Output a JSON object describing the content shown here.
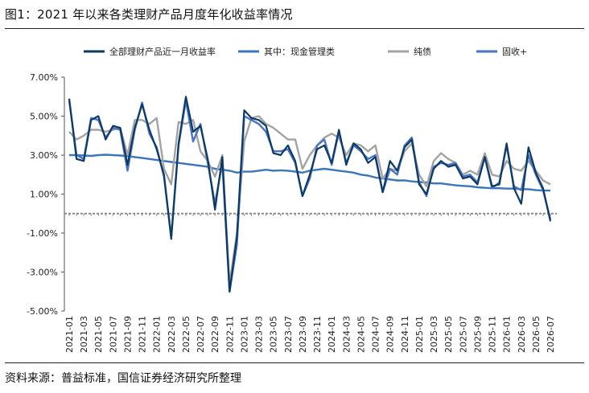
{
  "page": {
    "title": "图1：2021 年以来各类理财产品月度年化收益率情况",
    "source": "资料来源：普益标准，国信证券经济研究所整理"
  },
  "chart_data": {
    "type": "line",
    "title": "图1：2021 年以来各类理财产品月度年化收益率情况",
    "xlabel": "",
    "ylabel": "",
    "ylim": [
      -5,
      7
    ],
    "y_ticks": [
      7,
      5,
      3,
      1,
      -1,
      -3,
      -5
    ],
    "y_tick_labels": [
      "7.00%",
      "5.00%",
      "3.00%",
      "1.00%",
      "-1.00%",
      "-3.00%",
      "-5.00%"
    ],
    "grid": false,
    "legend_position": "top",
    "x": [
      "2021-01",
      "2021-02",
      "2021-03",
      "2021-04",
      "2021-05",
      "2021-06",
      "2021-07",
      "2021-08",
      "2021-09",
      "2021-10",
      "2021-11",
      "2021-12",
      "2022-01",
      "2022-02",
      "2022-03",
      "2022-04",
      "2022-05",
      "2022-06",
      "2022-07",
      "2022-08",
      "2022-09",
      "2022-10",
      "2022-11",
      "2022-12",
      "2023-01",
      "2023-02",
      "2023-03",
      "2023-04",
      "2023-05",
      "2023-06",
      "2023-07",
      "2023-08",
      "2023-09",
      "2023-10",
      "2023-11",
      "2023-12",
      "2024-01",
      "2024-02",
      "2024-03",
      "2024-04",
      "2024-05",
      "2024-06",
      "2024-07",
      "2024-08",
      "2024-09",
      "2024-10",
      "2024-11",
      "2024-12",
      "2025-01",
      "2025-02",
      "2025-03",
      "2025-04",
      "2025-05",
      "2025-06",
      "2025-07",
      "2025-08",
      "2025-09",
      "2025-10",
      "2025-11",
      "2025-12",
      "2026-01",
      "2026-02",
      "2026-03",
      "2026-04",
      "2026-05",
      "2026-06",
      "2026-07"
    ],
    "x_tick_labels": [
      "2021-01",
      "2021-03",
      "2021-05",
      "2021-07",
      "2021-09",
      "2021-11",
      "2022-01",
      "2022-03",
      "2022-05",
      "2022-07",
      "2022-09",
      "2022-11",
      "2023-01",
      "2023-03",
      "2023-05",
      "2023-07",
      "2023-09",
      "2023-11",
      "2024-01",
      "2024-03",
      "2024-05",
      "2024-07",
      "2024-09",
      "2024-11",
      "2025-01",
      "2025-03",
      "2025-05",
      "2025-07",
      "2025-09",
      "2025-11",
      "2026-01",
      "2026-03",
      "2026-05",
      "2026-07"
    ],
    "series": [
      {
        "name": "全部理财产品近一月收益率",
        "color": "#0d3a63",
        "values": [
          5.9,
          2.8,
          2.7,
          4.8,
          5.0,
          3.8,
          4.5,
          4.4,
          2.5,
          4.4,
          5.6,
          4.3,
          3.3,
          2.0,
          -1.3,
          3.6,
          6.0,
          4.2,
          4.5,
          2.8,
          0.2,
          2.9,
          -4.0,
          -1.2,
          5.3,
          4.9,
          4.8,
          4.5,
          3.1,
          3.0,
          3.5,
          2.7,
          0.9,
          2.0,
          3.3,
          3.5,
          2.6,
          4.3,
          2.5,
          3.6,
          3.3,
          2.6,
          2.9,
          1.1,
          2.7,
          2.2,
          3.4,
          3.8,
          1.5,
          1.0,
          2.3,
          2.7,
          2.4,
          2.5,
          1.8,
          1.9,
          1.5,
          2.9,
          1.4,
          1.5,
          3.6,
          1.3,
          0.5,
          3.4,
          2.1,
          1.3,
          -0.4
        ]
      },
      {
        "name": "其中：现金管理类",
        "color": "#3a76b8",
        "values": [
          3.0,
          3.0,
          2.98,
          2.96,
          3.0,
          3.02,
          3.0,
          2.98,
          2.95,
          2.9,
          2.85,
          2.8,
          2.75,
          2.7,
          2.65,
          2.6,
          2.55,
          2.5,
          2.45,
          2.4,
          2.3,
          2.25,
          2.2,
          2.1,
          2.15,
          2.15,
          2.2,
          2.25,
          2.2,
          2.22,
          2.2,
          2.15,
          2.1,
          2.2,
          2.25,
          2.3,
          2.25,
          2.2,
          2.15,
          2.1,
          2.0,
          1.95,
          1.85,
          1.8,
          1.75,
          1.7,
          1.7,
          1.65,
          1.62,
          1.6,
          1.55,
          1.55,
          1.5,
          1.45,
          1.42,
          1.4,
          1.35,
          1.32,
          1.3,
          1.3,
          1.28,
          1.28,
          1.25,
          1.25,
          1.2,
          1.18,
          1.18
        ]
      },
      {
        "name": "纯债",
        "color": "#a3a3a3",
        "values": [
          4.2,
          3.8,
          4.0,
          4.3,
          4.3,
          4.2,
          4.3,
          4.4,
          3.0,
          4.8,
          4.8,
          4.6,
          4.9,
          2.3,
          1.5,
          4.7,
          4.6,
          4.8,
          3.2,
          2.7,
          1.9,
          3.0,
          -3.6,
          -1.0,
          3.7,
          4.9,
          5.0,
          4.6,
          4.4,
          4.1,
          3.8,
          3.8,
          2.3,
          3.0,
          3.5,
          3.9,
          4.1,
          3.9,
          3.0,
          3.6,
          3.5,
          3.2,
          3.5,
          1.8,
          2.3,
          2.2,
          3.2,
          3.6,
          2.0,
          1.4,
          2.7,
          3.1,
          2.8,
          2.6,
          2.0,
          2.2,
          2.0,
          3.1,
          2.0,
          1.9,
          2.7,
          2.3,
          2.2,
          2.7,
          2.2,
          1.7,
          1.5
        ]
      },
      {
        "name": "固收+",
        "color": "#4a73c6",
        "values": [
          5.8,
          3.0,
          2.8,
          4.9,
          4.8,
          3.9,
          4.4,
          4.3,
          2.2,
          4.3,
          5.7,
          4.1,
          3.4,
          1.9,
          -1.2,
          3.5,
          5.8,
          3.7,
          4.6,
          2.6,
          0.5,
          2.6,
          -4.0,
          -1.6,
          5.0,
          4.8,
          4.6,
          4.2,
          3.2,
          3.2,
          3.3,
          2.6,
          0.9,
          1.8,
          3.5,
          3.8,
          2.5,
          4.2,
          2.6,
          3.5,
          3.2,
          2.8,
          3.0,
          1.1,
          2.3,
          2.0,
          3.5,
          3.9,
          1.6,
          0.9,
          2.4,
          2.6,
          2.5,
          2.6,
          1.9,
          2.0,
          1.6,
          2.9,
          1.3,
          1.6,
          3.5,
          1.4,
          1.2,
          3.0,
          2.0,
          1.2,
          -0.3
        ]
      }
    ]
  }
}
